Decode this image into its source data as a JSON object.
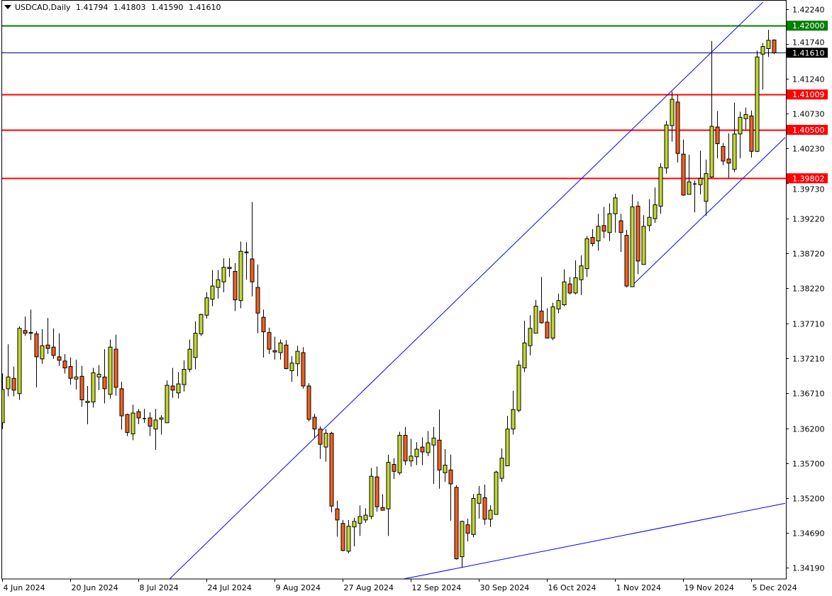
{
  "header": {
    "symbol_timeframe": "USDCAD,Daily",
    "open": "1.41794",
    "high": "1.41803",
    "low": "1.41590",
    "close": "1.41610"
  },
  "colors": {
    "background": "#ffffff",
    "bull_candle": "#c2d82c",
    "bear_candle": "#f2601f",
    "candle_outline": "#000000",
    "trendline": "#0000ff",
    "resistance_green": "#008000",
    "level_red": "#ff0000",
    "current_price": "#000080",
    "current_price_tag": "#000000"
  },
  "chart_data": {
    "type": "candlestick",
    "title": "USDCAD,Daily",
    "ylim": [
      1.3403,
      1.4237
    ],
    "grid": false,
    "y_ticks": [
      "1.42240",
      "1.41740",
      "1.41240",
      "1.40730",
      "1.40230",
      "1.39730",
      "1.39220",
      "1.38720",
      "1.38220",
      "1.37710",
      "1.37210",
      "1.36710",
      "1.36200",
      "1.35700",
      "1.35200",
      "1.34690",
      "1.34190"
    ],
    "x_ticks": [
      {
        "label": "4 Jun 2024",
        "bar": 0
      },
      {
        "label": "20 Jun 2024",
        "bar": 12
      },
      {
        "label": "8 Jul 2024",
        "bar": 24
      },
      {
        "label": "24 Jul 2024",
        "bar": 36
      },
      {
        "label": "9 Aug 2024",
        "bar": 48
      },
      {
        "label": "27 Aug 2024",
        "bar": 60
      },
      {
        "label": "12 Sep 2024",
        "bar": 72
      },
      {
        "label": "30 Sep 2024",
        "bar": 84
      },
      {
        "label": "16 Oct 2024",
        "bar": 96
      },
      {
        "label": "1 Nov 2024",
        "bar": 108
      },
      {
        "label": "19 Nov 2024",
        "bar": 120
      },
      {
        "label": "5 Dec 2024",
        "bar": 132
      }
    ],
    "ohlc_order": [
      "open",
      "high",
      "low",
      "close"
    ],
    "ohlc": [
      [
        1.3628,
        1.3699,
        1.3619,
        1.3676
      ],
      [
        1.3677,
        1.3741,
        1.3666,
        1.3694
      ],
      [
        1.3692,
        1.3709,
        1.3666,
        1.3675
      ],
      [
        1.367,
        1.3767,
        1.3661,
        1.3764
      ],
      [
        1.3761,
        1.3781,
        1.3753,
        1.3757
      ],
      [
        1.3757,
        1.3791,
        1.3747,
        1.3758
      ],
      [
        1.3756,
        1.376,
        1.3679,
        1.3723
      ],
      [
        1.372,
        1.3763,
        1.3713,
        1.3739
      ],
      [
        1.374,
        1.3779,
        1.3727,
        1.3735
      ],
      [
        1.3737,
        1.3764,
        1.372,
        1.3725
      ],
      [
        1.3723,
        1.3757,
        1.371,
        1.3718
      ],
      [
        1.3717,
        1.3727,
        1.3699,
        1.3707
      ],
      [
        1.3709,
        1.3722,
        1.3683,
        1.3692
      ],
      [
        1.3691,
        1.3719,
        1.3676,
        1.3694
      ],
      [
        1.3695,
        1.371,
        1.3651,
        1.3661
      ],
      [
        1.3657,
        1.3681,
        1.3626,
        1.3659
      ],
      [
        1.3658,
        1.3707,
        1.365,
        1.37
      ],
      [
        1.3694,
        1.3711,
        1.3675,
        1.3698
      ],
      [
        1.3694,
        1.3734,
        1.3656,
        1.3677
      ],
      [
        1.3669,
        1.3748,
        1.3663,
        1.3737
      ],
      [
        1.3734,
        1.3755,
        1.3667,
        1.3679
      ],
      [
        1.3677,
        1.3687,
        1.3618,
        1.3638
      ],
      [
        1.364,
        1.3641,
        1.3609,
        1.3614
      ],
      [
        1.3612,
        1.3654,
        1.3603,
        1.3642
      ],
      [
        1.3644,
        1.3648,
        1.3626,
        1.3635
      ],
      [
        1.3634,
        1.3648,
        1.3628,
        1.3634
      ],
      [
        1.3635,
        1.3643,
        1.3609,
        1.3623
      ],
      [
        1.3619,
        1.3648,
        1.3589,
        1.3632
      ],
      [
        1.3633,
        1.3639,
        1.3611,
        1.3635
      ],
      [
        1.3628,
        1.3689,
        1.3628,
        1.3682
      ],
      [
        1.3681,
        1.3707,
        1.3664,
        1.3675
      ],
      [
        1.3671,
        1.3701,
        1.3663,
        1.3684
      ],
      [
        1.3683,
        1.3718,
        1.3673,
        1.3705
      ],
      [
        1.3705,
        1.3748,
        1.3701,
        1.3734
      ],
      [
        1.3722,
        1.3774,
        1.3705,
        1.3757
      ],
      [
        1.3756,
        1.3785,
        1.3753,
        1.3784
      ],
      [
        1.3783,
        1.3816,
        1.3778,
        1.3808
      ],
      [
        1.3806,
        1.3848,
        1.3796,
        1.3825
      ],
      [
        1.3823,
        1.3848,
        1.3807,
        1.3834
      ],
      [
        1.3831,
        1.3865,
        1.3816,
        1.3852
      ],
      [
        1.3852,
        1.3865,
        1.3838,
        1.385
      ],
      [
        1.3846,
        1.3858,
        1.3789,
        1.3805
      ],
      [
        1.3804,
        1.3889,
        1.3793,
        1.3875
      ],
      [
        1.3874,
        1.3888,
        1.3834,
        1.3873
      ],
      [
        1.3864,
        1.3946,
        1.381,
        1.3831
      ],
      [
        1.3823,
        1.3856,
        1.3757,
        1.3786
      ],
      [
        1.378,
        1.3791,
        1.3722,
        1.3759
      ],
      [
        1.3758,
        1.3765,
        1.3727,
        1.3734
      ],
      [
        1.3732,
        1.3752,
        1.3719,
        1.373
      ],
      [
        1.3729,
        1.3748,
        1.3719,
        1.3743
      ],
      [
        1.374,
        1.3747,
        1.3705,
        1.3706
      ],
      [
        1.3703,
        1.3724,
        1.3687,
        1.3714
      ],
      [
        1.3713,
        1.3739,
        1.3695,
        1.3731
      ],
      [
        1.3729,
        1.3737,
        1.3677,
        1.3681
      ],
      [
        1.3681,
        1.3685,
        1.363,
        1.3633
      ],
      [
        1.3636,
        1.3641,
        1.3606,
        1.3619
      ],
      [
        1.3619,
        1.3623,
        1.3576,
        1.3597
      ],
      [
        1.3593,
        1.3619,
        1.3572,
        1.3613
      ],
      [
        1.3613,
        1.3615,
        1.3499,
        1.3508
      ],
      [
        1.3504,
        1.3516,
        1.3464,
        1.3488
      ],
      [
        1.3483,
        1.3488,
        1.3443,
        1.3444
      ],
      [
        1.3443,
        1.3488,
        1.344,
        1.3479
      ],
      [
        1.3478,
        1.3491,
        1.345,
        1.3486
      ],
      [
        1.3483,
        1.3509,
        1.3465,
        1.3493
      ],
      [
        1.3488,
        1.3505,
        1.3484,
        1.3495
      ],
      [
        1.3493,
        1.3563,
        1.3489,
        1.3551
      ],
      [
        1.355,
        1.3565,
        1.35,
        1.3507
      ],
      [
        1.3506,
        1.3525,
        1.3502,
        1.3502
      ],
      [
        1.3504,
        1.3582,
        1.3465,
        1.3571
      ],
      [
        1.3568,
        1.3577,
        1.3547,
        1.3558
      ],
      [
        1.3556,
        1.3615,
        1.3553,
        1.361
      ],
      [
        1.361,
        1.3622,
        1.3567,
        1.3573
      ],
      [
        1.3573,
        1.3605,
        1.3565,
        1.358
      ],
      [
        1.3579,
        1.36,
        1.3567,
        1.359
      ],
      [
        1.3593,
        1.3607,
        1.3567,
        1.3586
      ],
      [
        1.3585,
        1.3616,
        1.358,
        1.3599
      ],
      [
        1.3596,
        1.3622,
        1.354,
        1.3606
      ],
      [
        1.3603,
        1.3647,
        1.3533,
        1.356
      ],
      [
        1.3556,
        1.359,
        1.3543,
        1.3567
      ],
      [
        1.356,
        1.3582,
        1.3487,
        1.354
      ],
      [
        1.3535,
        1.3538,
        1.3431,
        1.3432
      ],
      [
        1.3435,
        1.3487,
        1.3419,
        1.3486
      ],
      [
        1.3481,
        1.349,
        1.3457,
        1.3469
      ],
      [
        1.3467,
        1.3525,
        1.3463,
        1.3519
      ],
      [
        1.3512,
        1.3537,
        1.349,
        1.3525
      ],
      [
        1.352,
        1.3539,
        1.3481,
        1.3489
      ],
      [
        1.3489,
        1.3509,
        1.3478,
        1.3502
      ],
      [
        1.3496,
        1.3559,
        1.3496,
        1.3557
      ],
      [
        1.3548,
        1.3591,
        1.3543,
        1.3577
      ],
      [
        1.3566,
        1.3638,
        1.3566,
        1.3619
      ],
      [
        1.3619,
        1.3674,
        1.3611,
        1.3647
      ],
      [
        1.3646,
        1.3718,
        1.3643,
        1.3711
      ],
      [
        1.3707,
        1.3775,
        1.3701,
        1.3743
      ],
      [
        1.3739,
        1.3783,
        1.3725,
        1.3764
      ],
      [
        1.3757,
        1.3805,
        1.3757,
        1.3796
      ],
      [
        1.3789,
        1.3838,
        1.3771,
        1.3772
      ],
      [
        1.3773,
        1.3793,
        1.375,
        1.375
      ],
      [
        1.375,
        1.3801,
        1.3747,
        1.3795
      ],
      [
        1.3792,
        1.3814,
        1.3786,
        1.3804
      ],
      [
        1.3798,
        1.3849,
        1.3796,
        1.3831
      ],
      [
        1.3828,
        1.3838,
        1.3813,
        1.3815
      ],
      [
        1.3815,
        1.3862,
        1.3813,
        1.3837
      ],
      [
        1.3834,
        1.3869,
        1.3812,
        1.3854
      ],
      [
        1.385,
        1.3897,
        1.3838,
        1.3893
      ],
      [
        1.3895,
        1.3907,
        1.3882,
        1.3886
      ],
      [
        1.389,
        1.3929,
        1.3876,
        1.3911
      ],
      [
        1.3912,
        1.3939,
        1.3894,
        1.3904
      ],
      [
        1.3902,
        1.3944,
        1.389,
        1.3929
      ],
      [
        1.3929,
        1.3958,
        1.3902,
        1.3952
      ],
      [
        1.3919,
        1.3929,
        1.3874,
        1.3902
      ],
      [
        1.3898,
        1.3906,
        1.3823,
        1.3825
      ],
      [
        1.3824,
        1.3957,
        1.3824,
        1.3939
      ],
      [
        1.394,
        1.3947,
        1.3842,
        1.3861
      ],
      [
        1.3856,
        1.3927,
        1.3856,
        1.3911
      ],
      [
        1.3912,
        1.395,
        1.3904,
        1.3924
      ],
      [
        1.3922,
        1.3967,
        1.3916,
        1.3942
      ],
      [
        1.394,
        1.4002,
        1.3929,
        1.3996
      ],
      [
        1.3995,
        1.4063,
        1.3987,
        1.4057
      ],
      [
        1.4056,
        1.4105,
        1.4033,
        1.4094
      ],
      [
        1.409,
        1.41,
        1.4003,
        1.4016
      ],
      [
        1.4015,
        1.4036,
        1.3955,
        1.3956
      ],
      [
        1.3957,
        1.4014,
        1.3957,
        1.3975
      ],
      [
        1.3972,
        1.3977,
        1.3931,
        1.3972
      ],
      [
        1.3971,
        1.402,
        1.3957,
        1.398
      ],
      [
        1.3947,
        1.4007,
        1.3926,
        1.3987
      ],
      [
        1.3982,
        1.4178,
        1.3981,
        1.4055
      ],
      [
        1.4054,
        1.4077,
        1.4009,
        1.403
      ],
      [
        1.4026,
        1.4031,
        1.3999,
        1.4005
      ],
      [
        1.4008,
        1.4045,
        1.3981,
        1.4002
      ],
      [
        1.3993,
        1.4089,
        1.3989,
        1.4044
      ],
      [
        1.4044,
        1.4076,
        1.4009,
        1.4068
      ],
      [
        1.4066,
        1.4082,
        1.405,
        1.4072
      ],
      [
        1.407,
        1.4078,
        1.401,
        1.4019
      ],
      [
        1.4019,
        1.4164,
        1.4018,
        1.4155
      ],
      [
        1.4159,
        1.4175,
        1.4108,
        1.417
      ],
      [
        1.4167,
        1.4194,
        1.4155,
        1.4179
      ],
      [
        1.41794,
        1.41803,
        1.4159,
        1.4161
      ]
    ],
    "horizontal_levels": [
      {
        "price": 1.42,
        "label": "1.42000",
        "color": "#008000",
        "kind": "resistance"
      },
      {
        "price": 1.4161,
        "label": "1.41610",
        "color": "#000080",
        "tag_color": "#000000",
        "kind": "current-price"
      },
      {
        "price": 1.41009,
        "label": "1.41009",
        "color": "#ff0000",
        "kind": "level"
      },
      {
        "price": 1.405,
        "label": "1.40500",
        "color": "#ff0000",
        "kind": "level"
      },
      {
        "price": 1.39802,
        "label": "1.39802",
        "color": "#ff0000",
        "kind": "level"
      }
    ],
    "trendlines": [
      {
        "name": "channel-upper",
        "from": {
          "bar": 29.5,
          "price": 1.3403
        },
        "to": {
          "bar": 134.1,
          "price": 1.4234
        }
      },
      {
        "name": "channel-lower",
        "from": {
          "bar": 110.8,
          "price": 1.3824
        },
        "to": {
          "bar": 138,
          "price": 1.4039
        }
      },
      {
        "name": "support-long",
        "from": {
          "bar": 69.5,
          "price": 1.3401
        },
        "to": {
          "bar": 138,
          "price": 1.3512
        }
      }
    ]
  }
}
